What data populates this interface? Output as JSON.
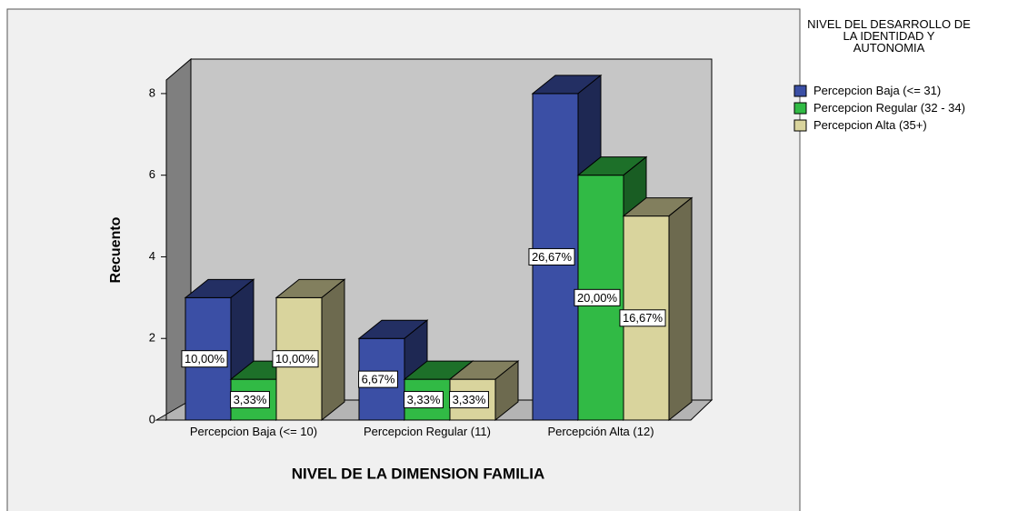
{
  "chart_data": {
    "type": "bar3d",
    "categories": [
      "Percepcion Baja (<= 10)",
      "Percepcion Regular (11)",
      "Percepción Alta (12)"
    ],
    "series": [
      {
        "name": "Percepcion Baja (<= 31)",
        "color": "#3b4fa5",
        "values": [
          3,
          2,
          8
        ],
        "value_labels": [
          "10,00%",
          "6,67%",
          "26,67%"
        ]
      },
      {
        "name": "Percepcion Regular (32 - 34)",
        "color": "#31ba45",
        "values": [
          1,
          1,
          6
        ],
        "value_labels": [
          "3,33%",
          "3,33%",
          "20,00%"
        ]
      },
      {
        "name": "Percepcion Alta (35+)",
        "color": "#d9d49d",
        "values": [
          3,
          1,
          5
        ],
        "value_labels": [
          "10,00%",
          "3,33%",
          "16,67%"
        ]
      }
    ],
    "legend_title": "NIVEL DEL DESARROLLO DE LA IDENTIDAD Y AUTONOMIA",
    "y_label": "Recuento",
    "x_label": "NIVEL DE LA DIMENSION FAMILIA",
    "ylim": [
      0,
      8.8
    ],
    "yticks": [
      0,
      2,
      4,
      6,
      8
    ],
    "legend": "right"
  }
}
